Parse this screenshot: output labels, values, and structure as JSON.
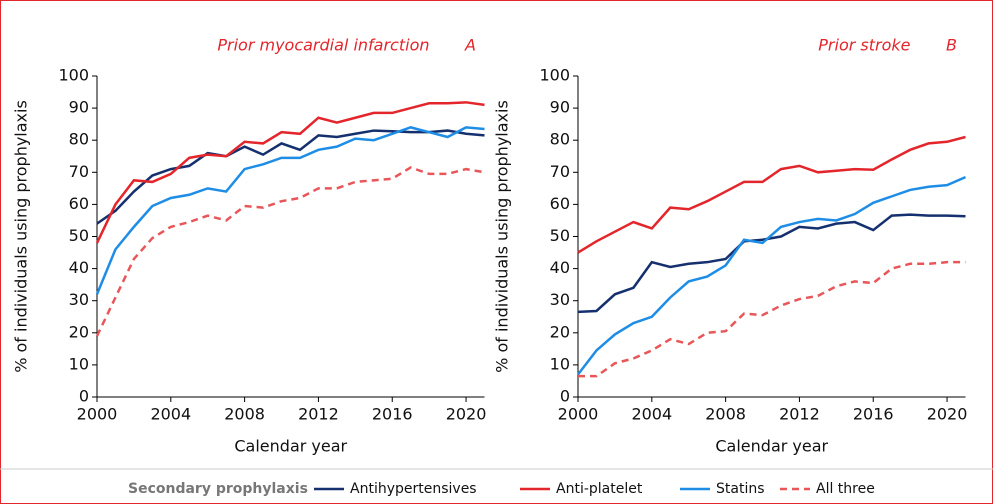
{
  "chart_data": [
    {
      "type": "line",
      "title": "Prior myocardial infarction",
      "panel_label": "A",
      "x_label": "Calendar year",
      "y_label": "% of individuals using prophylaxis",
      "legend_title": "Secondary prophylaxis",
      "x": [
        2000,
        2001,
        2002,
        2003,
        2004,
        2005,
        2006,
        2007,
        2008,
        2009,
        2010,
        2011,
        2012,
        2013,
        2014,
        2015,
        2016,
        2017,
        2018,
        2019,
        2020,
        2021
      ],
      "xlim": [
        2000,
        2021
      ],
      "xticks": [
        2000,
        2004,
        2008,
        2012,
        2016,
        2020
      ],
      "ylim": [
        0,
        100
      ],
      "yticks": [
        0,
        10,
        20,
        30,
        40,
        50,
        60,
        70,
        80,
        90,
        100
      ],
      "series": [
        {
          "name": "Antihypertensives",
          "color": "#15306e",
          "style": "solid",
          "values": [
            54,
            58,
            64,
            69,
            71,
            72,
            76,
            75,
            78,
            75.5,
            79,
            77,
            81.5,
            81,
            82,
            83,
            82.8,
            82.5,
            82.5,
            83,
            82,
            81.5
          ]
        },
        {
          "name": "Anti-platelet",
          "color": "#e3262c",
          "style": "solid",
          "values": [
            48,
            60,
            67.5,
            67,
            69.5,
            74.5,
            75.5,
            75,
            79.5,
            79,
            82.5,
            82,
            87,
            85.5,
            87,
            88.5,
            88.5,
            90,
            91.5,
            91.5,
            91.8,
            91
          ]
        },
        {
          "name": "Statins",
          "color": "#1e8de6",
          "style": "solid",
          "values": [
            32,
            46,
            53,
            59.5,
            62,
            63,
            65,
            64,
            71,
            72.5,
            74.5,
            74.5,
            77,
            78,
            80.5,
            80,
            82,
            84,
            82.5,
            81,
            84,
            83.5
          ]
        },
        {
          "name": "All three",
          "color": "#e8565a",
          "style": "dashed",
          "values": [
            19,
            31,
            43,
            49.5,
            53,
            54.5,
            56.5,
            55,
            59.5,
            59,
            61,
            62,
            65,
            65,
            67,
            67.5,
            68,
            71.5,
            69.5,
            69.5,
            71,
            70
          ]
        }
      ]
    },
    {
      "type": "line",
      "title": "Prior stroke",
      "panel_label": "B",
      "x_label": "Calendar year",
      "y_label": "% of individuals using prophylaxis",
      "x": [
        2000,
        2001,
        2002,
        2003,
        2004,
        2005,
        2006,
        2007,
        2008,
        2009,
        2010,
        2011,
        2012,
        2013,
        2014,
        2015,
        2016,
        2017,
        2018,
        2019,
        2020,
        2021
      ],
      "xlim": [
        2000,
        2021
      ],
      "xticks": [
        2000,
        2004,
        2008,
        2012,
        2016,
        2020
      ],
      "ylim": [
        0,
        100
      ],
      "yticks": [
        0,
        10,
        20,
        30,
        40,
        50,
        60,
        70,
        80,
        90,
        100
      ],
      "series": [
        {
          "color": "#15306e",
          "style": "solid",
          "values": [
            26.5,
            26.8,
            32,
            34,
            42,
            40.5,
            41.5,
            42,
            43,
            48.5,
            49,
            50,
            53,
            52.5,
            54,
            54.5,
            52,
            56.5,
            56.8,
            56.5,
            56.5,
            56.3
          ]
        },
        {
          "color": "#e3262c",
          "style": "solid",
          "values": [
            45,
            48.5,
            51.5,
            54.5,
            52.5,
            59,
            58.5,
            61,
            64,
            67,
            67,
            71,
            72,
            70,
            70.5,
            71,
            70.8,
            74,
            77,
            79,
            79.5,
            81
          ]
        },
        {
          "color": "#1e8de6",
          "style": "solid",
          "values": [
            7,
            14.5,
            19.5,
            23,
            25,
            31,
            36,
            37.5,
            41,
            49,
            48,
            53,
            54.5,
            55.5,
            55,
            57,
            60.5,
            62.5,
            64.5,
            65.5,
            66,
            68.5
          ]
        },
        {
          "color": "#e8565a",
          "style": "dashed",
          "values": [
            6.5,
            6.5,
            10.5,
            12,
            14.5,
            18,
            16.5,
            20,
            20.5,
            26,
            25.5,
            28.5,
            30.5,
            31.5,
            34.5,
            36,
            35.5,
            40,
            41.5,
            41.5,
            42,
            42
          ]
        }
      ]
    }
  ]
}
